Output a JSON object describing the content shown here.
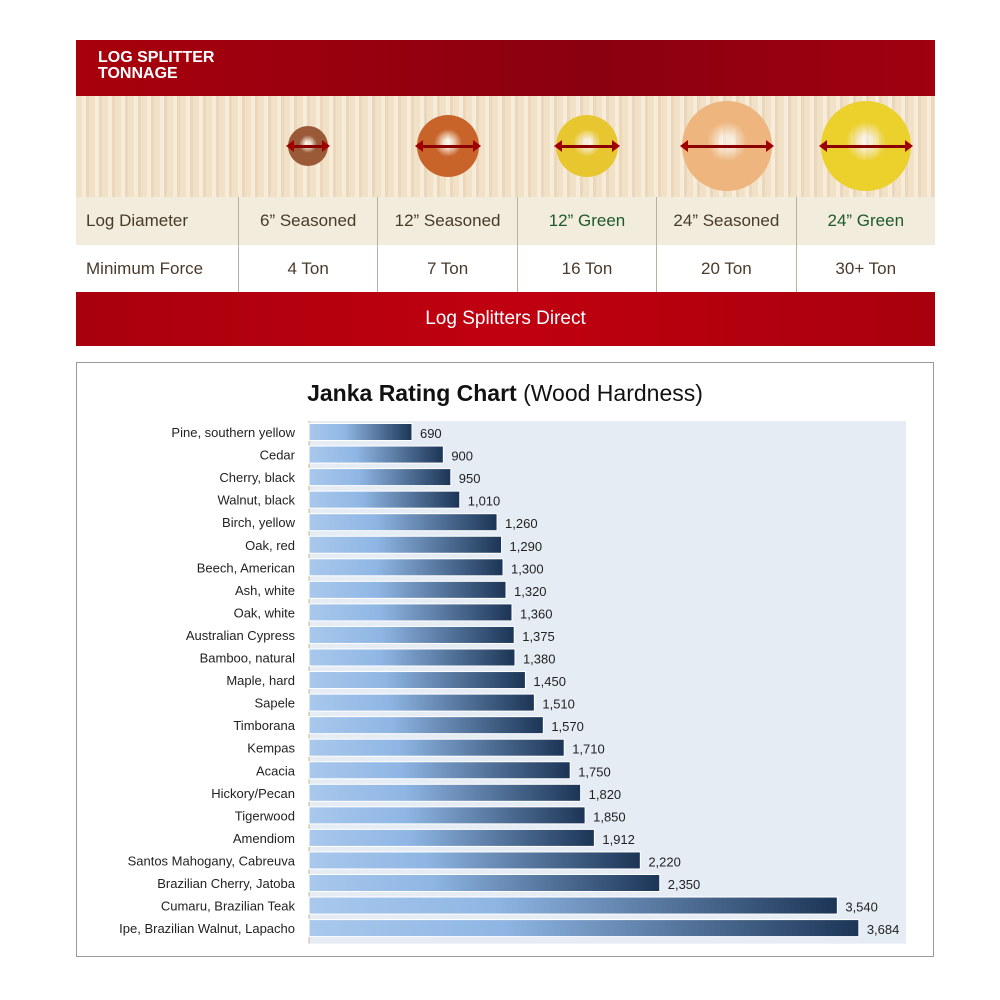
{
  "tonnage": {
    "header": [
      "LOG SPLITTER",
      "TONNAGE"
    ],
    "row_labels": {
      "diameter": "Log Diameter",
      "force": "Minimum Force"
    },
    "columns": [
      {
        "diameter": "6” Seasoned",
        "force": "4 Ton",
        "green": false,
        "log_color": "#9a5a38"
      },
      {
        "diameter": "12” Seasoned",
        "force": "7 Ton",
        "green": false,
        "log_color": "#c8642a"
      },
      {
        "diameter": "12” Green",
        "force": "16 Ton",
        "green": true,
        "log_color": "#e8c630"
      },
      {
        "diameter": "24” Seasoned",
        "force": "20 Ton",
        "green": false,
        "log_color": "#eeb57e"
      },
      {
        "diameter": "24” Green",
        "force": "30+ Ton",
        "green": true,
        "log_color": "#ecd02c"
      }
    ],
    "footer": "Log Splitters Direct",
    "accent_color": "#a8000c"
  },
  "chart_data": {
    "type": "bar",
    "orientation": "horizontal",
    "title_bold": "Janka Rating Chart",
    "title_rest": "(Wood Hardness)",
    "categories": [
      "Pine, southern yellow",
      "Cedar",
      "Cherry, black",
      "Walnut, black",
      "Birch, yellow",
      "Oak, red",
      "Beech, American",
      "Ash, white",
      "Oak, white",
      "Australian Cypress",
      "Bamboo, natural",
      "Maple, hard",
      "Sapele",
      "Timborana",
      "Kempas",
      "Acacia",
      "Hickory/Pecan",
      "Tigerwood",
      "Amendiom",
      "Santos Mahogany, Cabreuva",
      "Brazilian Cherry, Jatoba",
      "Cumaru, Brazilian Teak",
      "Ipe, Brazilian Walnut, Lapacho"
    ],
    "values": [
      690,
      900,
      950,
      1010,
      1260,
      1290,
      1300,
      1320,
      1360,
      1375,
      1380,
      1450,
      1510,
      1570,
      1710,
      1750,
      1820,
      1850,
      1912,
      2220,
      2350,
      3540,
      3684
    ],
    "data_labels": [
      "690",
      "900",
      "950",
      "1,010",
      "1,260",
      "1,290",
      "1,300",
      "1,320",
      "1,360",
      "1,375",
      "1,380",
      "1,450",
      "1,510",
      "1,570",
      "1,710",
      "1,750",
      "1,820",
      "1,850",
      "1,912",
      "2,220",
      "2,350",
      "3,540",
      "3,684"
    ],
    "xlim": [
      0,
      4000
    ],
    "grid": false,
    "legend": "none",
    "bar_color_light": "#a9c8ec",
    "bar_color_dark": "#1c3556",
    "plot_bg": "#e6ecf4"
  }
}
